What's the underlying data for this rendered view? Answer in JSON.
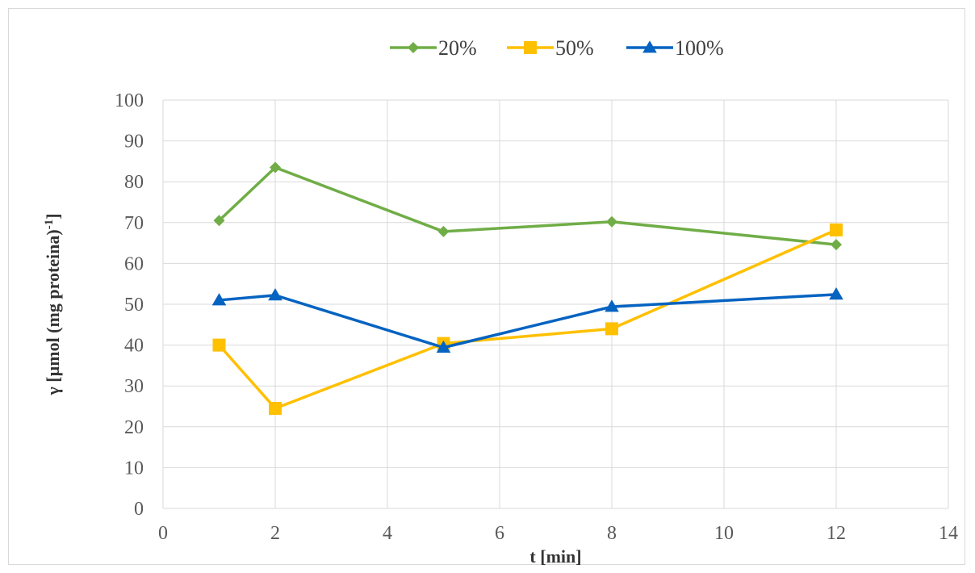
{
  "chart_data": {
    "type": "line",
    "xlabel": "t [min]",
    "ylabel": "γ [µmol (mg proteina)",
    "ylabel_superscript": "-1",
    "ylabel_suffix": "]",
    "xlim": [
      0,
      14
    ],
    "ylim": [
      0,
      100
    ],
    "xticks": [
      "0",
      "2",
      "4",
      "6",
      "8",
      "10",
      "12",
      "14"
    ],
    "yticks": [
      "0",
      "10",
      "20",
      "30",
      "40",
      "50",
      "60",
      "70",
      "80",
      "90",
      "100"
    ],
    "grid": true,
    "legend_position": "top-center",
    "x": [
      1,
      2,
      5,
      8,
      12
    ],
    "series": [
      {
        "name": "20%",
        "color": "#70AD47",
        "marker": "diamond",
        "values": [
          70.5,
          83.5,
          67.8,
          70.2,
          64.6
        ]
      },
      {
        "name": "50%",
        "color": "#FFC000",
        "marker": "square",
        "values": [
          40.0,
          24.5,
          40.4,
          44.0,
          68.2
        ]
      },
      {
        "name": "100%",
        "color": "#0563C1",
        "marker": "triangle",
        "values": [
          51.0,
          52.2,
          39.4,
          49.4,
          52.4
        ]
      }
    ]
  }
}
